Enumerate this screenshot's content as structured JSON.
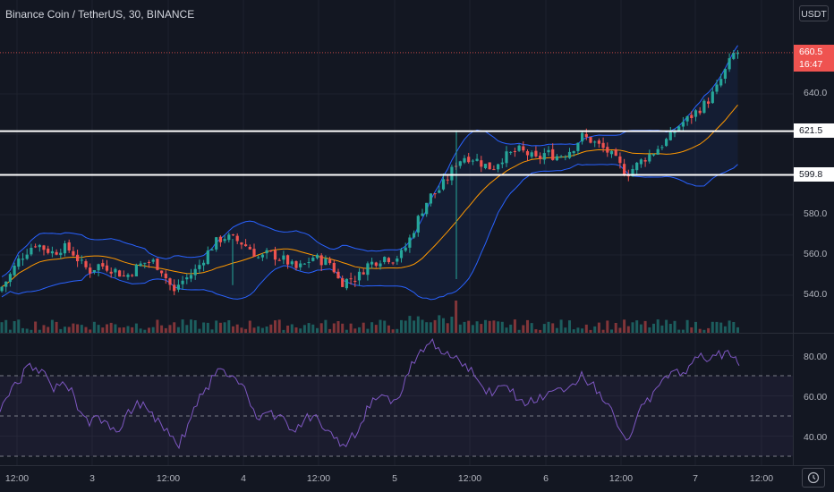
{
  "header": {
    "title": "Binance Coin / TetherUS, 30, BINANCE",
    "currency": "USDT"
  },
  "price_scale": {
    "labels": [
      "640.0",
      "580.0",
      "560.0",
      "540.0"
    ],
    "last_price": "660.5",
    "countdown": "16:47",
    "levels": [
      "621.5",
      "599.8"
    ]
  },
  "rsi_scale": {
    "labels": [
      "80.00",
      "60.00",
      "40.00"
    ]
  },
  "time_axis": {
    "labels": [
      "12:00",
      "3",
      "12:00",
      "4",
      "12:00",
      "5",
      "12:00",
      "6",
      "12:00",
      "7",
      "12:00"
    ]
  },
  "colors": {
    "up": "#26a69a",
    "down": "#ef5350",
    "band": "#2962ff",
    "basis": "#ff9800",
    "rsi": "#7e57c2",
    "level": "#ffffff"
  },
  "icons": {
    "timezone": "clock-icon"
  },
  "chart_data": [
    {
      "type": "candlestick",
      "title": "Binance Coin / TetherUS, 30, BINANCE",
      "indicators": [
        "Bollinger Bands (basis, upper, lower)",
        "Volume"
      ],
      "ylim": [
        528,
        678
      ],
      "horizontal_levels": [
        621.5,
        599.8
      ],
      "last_price": 660.5,
      "x_ticks": [
        "12:00",
        "3",
        "12:00",
        "4",
        "12:00",
        "5",
        "12:00",
        "6",
        "12:00",
        "7",
        "12:00"
      ],
      "close_path": [
        [
          0,
          543
        ],
        [
          10,
          549
        ],
        [
          20,
          557
        ],
        [
          30,
          562
        ],
        [
          40,
          566
        ],
        [
          50,
          563
        ],
        [
          60,
          561
        ],
        [
          70,
          564
        ],
        [
          80,
          562
        ],
        [
          90,
          556
        ],
        [
          100,
          552
        ],
        [
          110,
          555
        ],
        [
          120,
          554
        ],
        [
          130,
          552
        ],
        [
          140,
          549
        ],
        [
          150,
          553
        ],
        [
          160,
          556
        ],
        [
          170,
          557
        ],
        [
          180,
          553
        ],
        [
          185,
          549
        ],
        [
          190,
          545
        ],
        [
          195,
          541
        ],
        [
          200,
          546
        ],
        [
          210,
          549
        ],
        [
          220,
          553
        ],
        [
          230,
          560
        ],
        [
          240,
          566
        ],
        [
          250,
          569
        ],
        [
          260,
          568
        ],
        [
          270,
          566
        ],
        [
          280,
          563
        ],
        [
          290,
          558
        ],
        [
          300,
          561
        ],
        [
          310,
          559
        ],
        [
          320,
          557
        ],
        [
          330,
          553
        ],
        [
          340,
          555
        ],
        [
          350,
          559
        ],
        [
          360,
          557
        ],
        [
          370,
          556
        ],
        [
          380,
          546
        ],
        [
          390,
          548
        ],
        [
          400,
          549
        ],
        [
          410,
          555
        ],
        [
          420,
          557
        ],
        [
          430,
          559
        ],
        [
          440,
          558
        ],
        [
          450,
          561
        ],
        [
          460,
          570
        ],
        [
          470,
          581
        ],
        [
          480,
          589
        ],
        [
          490,
          592
        ],
        [
          500,
          598
        ],
        [
          510,
          606
        ],
        [
          520,
          609
        ],
        [
          530,
          608
        ],
        [
          540,
          605
        ],
        [
          550,
          603
        ],
        [
          560,
          608
        ],
        [
          570,
          610
        ],
        [
          580,
          612
        ],
        [
          590,
          610
        ],
        [
          600,
          607
        ],
        [
          610,
          611
        ],
        [
          620,
          609
        ],
        [
          630,
          610
        ],
        [
          640,
          613
        ],
        [
          650,
          619
        ],
        [
          660,
          617
        ],
        [
          670,
          614
        ],
        [
          680,
          611
        ],
        [
          690,
          606
        ],
        [
          700,
          600
        ],
        [
          710,
          604
        ],
        [
          720,
          608
        ],
        [
          730,
          611
        ],
        [
          740,
          615
        ],
        [
          750,
          619
        ],
        [
          760,
          625
        ],
        [
          770,
          628
        ],
        [
          780,
          632
        ],
        [
          790,
          636
        ],
        [
          800,
          642
        ],
        [
          810,
          651
        ],
        [
          820,
          660
        ],
        [
          826,
          660.5
        ]
      ],
      "volume_spike_at_x": 510
    },
    {
      "type": "line",
      "title": "RSI",
      "ylim": [
        27,
        93
      ],
      "reference_levels": [
        70,
        50,
        30
      ],
      "points": [
        [
          0,
          52
        ],
        [
          10,
          60
        ],
        [
          20,
          66
        ],
        [
          30,
          75
        ],
        [
          40,
          74
        ],
        [
          50,
          72
        ],
        [
          60,
          62
        ],
        [
          70,
          67
        ],
        [
          80,
          64
        ],
        [
          90,
          52
        ],
        [
          100,
          45
        ],
        [
          110,
          50
        ],
        [
          120,
          47
        ],
        [
          130,
          42
        ],
        [
          140,
          50
        ],
        [
          150,
          54
        ],
        [
          160,
          57
        ],
        [
          170,
          52
        ],
        [
          180,
          46
        ],
        [
          190,
          40
        ],
        [
          200,
          34
        ],
        [
          210,
          46
        ],
        [
          220,
          55
        ],
        [
          230,
          64
        ],
        [
          240,
          70
        ],
        [
          250,
          73
        ],
        [
          260,
          70
        ],
        [
          270,
          66
        ],
        [
          280,
          55
        ],
        [
          290,
          48
        ],
        [
          300,
          52
        ],
        [
          310,
          50
        ],
        [
          320,
          47
        ],
        [
          330,
          42
        ],
        [
          340,
          48
        ],
        [
          350,
          50
        ],
        [
          360,
          44
        ],
        [
          370,
          42
        ],
        [
          380,
          35
        ],
        [
          390,
          38
        ],
        [
          400,
          42
        ],
        [
          410,
          55
        ],
        [
          420,
          58
        ],
        [
          430,
          60
        ],
        [
          440,
          58
        ],
        [
          450,
          63
        ],
        [
          460,
          77
        ],
        [
          470,
          83
        ],
        [
          480,
          86
        ],
        [
          490,
          84
        ],
        [
          500,
          82
        ],
        [
          510,
          80
        ],
        [
          520,
          76
        ],
        [
          530,
          70
        ],
        [
          540,
          64
        ],
        [
          550,
          60
        ],
        [
          560,
          65
        ],
        [
          570,
          62
        ],
        [
          580,
          58
        ],
        [
          590,
          56
        ],
        [
          600,
          57
        ],
        [
          610,
          60
        ],
        [
          620,
          63
        ],
        [
          630,
          62
        ],
        [
          640,
          66
        ],
        [
          650,
          72
        ],
        [
          660,
          66
        ],
        [
          670,
          62
        ],
        [
          680,
          56
        ],
        [
          690,
          45
        ],
        [
          700,
          38
        ],
        [
          710,
          47
        ],
        [
          720,
          56
        ],
        [
          730,
          62
        ],
        [
          740,
          68
        ],
        [
          750,
          72
        ],
        [
          760,
          70
        ],
        [
          770,
          75
        ],
        [
          780,
          79
        ],
        [
          790,
          77
        ],
        [
          800,
          80
        ],
        [
          810,
          82
        ],
        [
          820,
          79
        ],
        [
          826,
          75
        ]
      ]
    }
  ]
}
